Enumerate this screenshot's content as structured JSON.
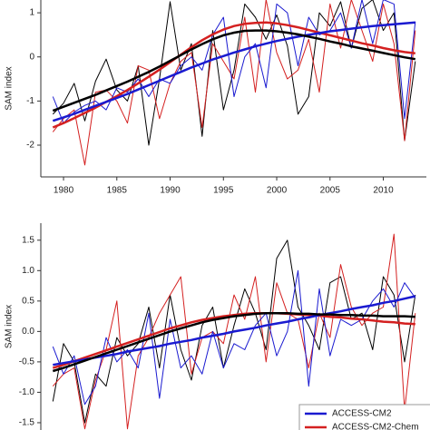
{
  "chart_data": [
    {
      "type": "line",
      "ylabel": "SAM index",
      "x": [
        1979,
        1980,
        1981,
        1982,
        1983,
        1984,
        1985,
        1986,
        1987,
        1988,
        1989,
        1990,
        1991,
        1992,
        1993,
        1994,
        1995,
        1996,
        1997,
        1998,
        1999,
        2000,
        2001,
        2002,
        2003,
        2004,
        2005,
        2006,
        2007,
        2008,
        2009,
        2010,
        2011,
        2012,
        2013
      ],
      "xlim": [
        1977.87,
        2014.04
      ],
      "xticks": [
        1980,
        1985,
        1990,
        1995,
        2000,
        2005,
        2010
      ],
      "ylim": [
        -2.72,
        1.29
      ],
      "yticks": [
        -2,
        -1,
        0,
        1
      ],
      "series": [
        {
          "color": "#000000",
          "line_width": 1,
          "values": [
            -1.3,
            -1.05,
            -0.6,
            -1.45,
            -0.55,
            -0.05,
            -0.75,
            -1.0,
            -0.2,
            -2.0,
            -0.5,
            1.25,
            -0.3,
            0.3,
            -1.8,
            0.6,
            -1.2,
            -0.3,
            1.2,
            0.9,
            0.4,
            0.95,
            0.25,
            -1.3,
            -0.9,
            1.0,
            0.7,
            1.25,
            0.2,
            1.1,
            1.3,
            0.6,
            1.0,
            -1.9,
            -0.1
          ]
        },
        {
          "color": "#d42020",
          "line_width": 1,
          "values": [
            -1.7,
            -1.4,
            -1.2,
            -2.45,
            -0.8,
            -0.75,
            -1.0,
            -1.5,
            -0.2,
            -0.3,
            -1.4,
            -0.6,
            -0.1,
            0.1,
            -1.6,
            0.3,
            -0.1,
            -0.5,
            0.9,
            -0.8,
            1.3,
            0.1,
            -0.5,
            -0.3,
            0.4,
            -0.8,
            1.2,
            0.2,
            1.3,
            0.6,
            -0.1,
            1.2,
            0.3,
            -1.9,
            0.6
          ]
        },
        {
          "color": "#1a1ad0",
          "line_width": 1,
          "values": [
            -0.9,
            -1.5,
            -1.25,
            -1.1,
            -1.0,
            -1.2,
            -0.7,
            -0.8,
            -0.5,
            -0.9,
            -0.5,
            -0.6,
            -0.2,
            0.0,
            -0.3,
            0.5,
            0.9,
            -0.9,
            0.0,
            0.3,
            -0.7,
            1.2,
            1.0,
            -0.2,
            0.9,
            0.5,
            0.6,
            1.0,
            0.2,
            1.3,
            0.3,
            1.3,
            1.2,
            -1.4,
            0.8
          ]
        },
        {
          "color": "#d42020",
          "line_width": 2.5,
          "values": [
            -1.6,
            -1.5,
            -1.39,
            -1.27,
            -1.15,
            -1.02,
            -0.89,
            -0.75,
            -0.6,
            -0.45,
            -0.29,
            -0.12,
            0.05,
            0.22,
            0.38,
            0.51,
            0.62,
            0.7,
            0.75,
            0.77,
            0.78,
            0.76,
            0.72,
            0.67,
            0.61,
            0.55,
            0.49,
            0.43,
            0.37,
            0.31,
            0.26,
            0.2,
            0.15,
            0.11,
            0.08
          ]
        },
        {
          "color": "#1a1ad0",
          "line_width": 2.5,
          "values": [
            -1.45,
            -1.37,
            -1.29,
            -1.2,
            -1.11,
            -1.02,
            -0.93,
            -0.84,
            -0.74,
            -0.64,
            -0.54,
            -0.44,
            -0.34,
            -0.24,
            -0.15,
            -0.06,
            0.02,
            0.1,
            0.17,
            0.24,
            0.3,
            0.36,
            0.41,
            0.46,
            0.5,
            0.54,
            0.58,
            0.61,
            0.64,
            0.67,
            0.7,
            0.72,
            0.74,
            0.76,
            0.78
          ]
        },
        {
          "color": "#000000",
          "line_width": 2.5,
          "values": [
            -1.22,
            -1.13,
            -1.04,
            -0.95,
            -0.86,
            -0.76,
            -0.66,
            -0.56,
            -0.45,
            -0.34,
            -0.22,
            -0.09,
            0.04,
            0.17,
            0.29,
            0.4,
            0.49,
            0.55,
            0.59,
            0.6,
            0.6,
            0.58,
            0.55,
            0.51,
            0.46,
            0.41,
            0.35,
            0.3,
            0.24,
            0.19,
            0.14,
            0.09,
            0.04,
            -0.01,
            -0.05
          ]
        }
      ]
    },
    {
      "type": "line",
      "ylabel": "SAM index",
      "x": [
        1979,
        1980,
        1981,
        1982,
        1983,
        1984,
        1985,
        1986,
        1987,
        1988,
        1989,
        1990,
        1991,
        1992,
        1993,
        1994,
        1995,
        1996,
        1997,
        1998,
        1999,
        2000,
        2001,
        2002,
        2003,
        2004,
        2005,
        2006,
        2007,
        2008,
        2009,
        2010,
        2011,
        2012,
        2013
      ],
      "xlim": [
        1977.87,
        2014.04
      ],
      "ylim": [
        -1.62,
        1.78
      ],
      "yticks": [
        -1.5,
        {
          "value": -1,
          "label": "-1.0"
        },
        -0.5,
        {
          "value": 0,
          "label": "0.0"
        },
        0.5,
        {
          "value": 1,
          "label": "1.0"
        },
        1.5
      ],
      "legend": "lower right",
      "series": [
        {
          "color": "#000000",
          "line_width": 1,
          "values": [
            -1.15,
            -0.2,
            -0.5,
            -1.5,
            -0.7,
            -0.9,
            -0.1,
            -0.4,
            -0.2,
            0.4,
            -0.6,
            0.6,
            -0.3,
            -0.8,
            0.1,
            0.4,
            -0.6,
            0.1,
            0.7,
            0.3,
            -0.3,
            1.2,
            1.5,
            0.4,
            0.1,
            -0.3,
            0.8,
            0.9,
            0.2,
            0.3,
            -0.3,
            0.9,
            0.6,
            -0.5,
            0.6
          ]
        },
        {
          "color": "#d42020",
          "line_width": 1,
          "values": [
            -0.9,
            -0.7,
            -0.6,
            -1.6,
            -0.8,
            -0.3,
            0.5,
            -1.6,
            -0.4,
            -0.1,
            0.3,
            0.6,
            0.9,
            -0.7,
            -0.1,
            0.0,
            -0.2,
            0.6,
            0.2,
            0.9,
            -0.5,
            0.8,
            0.3,
            0.2,
            -0.6,
            0.3,
            -0.1,
            1.1,
            0.4,
            0.1,
            0.3,
            0.4,
            1.6,
            -1.3,
            0.3
          ]
        },
        {
          "color": "#1a1ad0",
          "line_width": 1,
          "values": [
            -0.25,
            -0.7,
            -0.4,
            -1.2,
            -0.9,
            -0.1,
            -0.5,
            -0.3,
            -0.6,
            0.3,
            -1.1,
            0.2,
            -0.6,
            -0.4,
            -0.7,
            0.0,
            -0.6,
            -0.2,
            -0.3,
            0.1,
            0.3,
            -0.4,
            0.0,
            1.0,
            -0.9,
            0.7,
            -0.4,
            0.2,
            0.1,
            0.2,
            0.5,
            0.7,
            0.4,
            0.8,
            0.55
          ]
        },
        {
          "name": "ACCESS-CM2-Chem",
          "color": "#d42020",
          "line_width": 2.5,
          "values": [
            -0.6,
            -0.55,
            -0.49,
            -0.43,
            -0.37,
            -0.31,
            -0.25,
            -0.19,
            -0.13,
            -0.07,
            -0.01,
            0.05,
            0.1,
            0.15,
            0.19,
            0.22,
            0.25,
            0.27,
            0.29,
            0.3,
            0.3,
            0.3,
            0.29,
            0.28,
            0.27,
            0.26,
            0.24,
            0.23,
            0.21,
            0.2,
            0.18,
            0.16,
            0.15,
            0.13,
            0.12
          ]
        },
        {
          "name": "ACCESS-CM2",
          "color": "#1a1ad0",
          "line_width": 2.5,
          "values": [
            -0.55,
            -0.52,
            -0.49,
            -0.46,
            -0.43,
            -0.4,
            -0.37,
            -0.33,
            -0.3,
            -0.27,
            -0.24,
            -0.2,
            -0.17,
            -0.14,
            -0.1,
            -0.07,
            -0.04,
            0.0,
            0.03,
            0.06,
            0.1,
            0.13,
            0.16,
            0.2,
            0.23,
            0.27,
            0.3,
            0.33,
            0.37,
            0.4,
            0.43,
            0.47,
            0.5,
            0.54,
            0.58
          ]
        },
        {
          "color": "#000000",
          "line_width": 2.5,
          "values": [
            -0.65,
            -0.6,
            -0.54,
            -0.48,
            -0.42,
            -0.36,
            -0.3,
            -0.24,
            -0.18,
            -0.12,
            -0.06,
            0.0,
            0.05,
            0.1,
            0.15,
            0.19,
            0.22,
            0.25,
            0.27,
            0.29,
            0.3,
            0.3,
            0.3,
            0.29,
            0.29,
            0.28,
            0.28,
            0.27,
            0.27,
            0.26,
            0.26,
            0.25,
            0.25,
            0.25,
            0.24
          ]
        }
      ]
    }
  ]
}
